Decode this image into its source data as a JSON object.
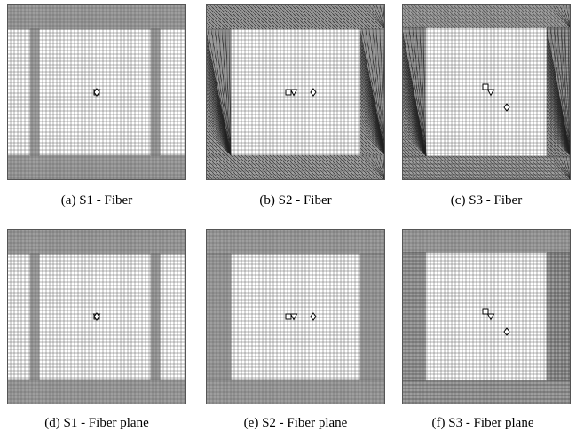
{
  "figure": {
    "panels": [
      {
        "id": "a",
        "caption": "(a)  S1 - Fiber",
        "scenario": "S1",
        "pattern": "bands-v",
        "markers": [
          "triangle-down",
          "square",
          "diamond"
        ],
        "marker_spread": "overlap"
      },
      {
        "id": "b",
        "caption": "(b)  S2 - Fiber",
        "scenario": "S2",
        "pattern": "frame-diag",
        "markers": [
          "square",
          "triangle-down",
          "diamond"
        ],
        "marker_spread": "row"
      },
      {
        "id": "c",
        "caption": "(c)  S3 - Fiber",
        "scenario": "S3",
        "pattern": "frame-diag",
        "markers": [
          "square",
          "triangle-down",
          "diamond"
        ],
        "marker_spread": "diagonal"
      },
      {
        "id": "d",
        "caption": "(d)  S1 - Fiber plane",
        "scenario": "S1",
        "pattern": "bands-v",
        "markers": [
          "triangle-down",
          "square",
          "diamond"
        ],
        "marker_spread": "overlap"
      },
      {
        "id": "e",
        "caption": "(e)  S2 - Fiber plane",
        "scenario": "S2",
        "pattern": "frame",
        "markers": [
          "square",
          "triangle-down",
          "diamond"
        ],
        "marker_spread": "row"
      },
      {
        "id": "f",
        "caption": "(f)  S3 - Fiber plane",
        "scenario": "S3",
        "pattern": "frame",
        "markers": [
          "square",
          "triangle-down",
          "diamond"
        ],
        "marker_spread": "diagonal"
      }
    ],
    "colors": {
      "grid_line": "#555555",
      "dense_grid": "#222222",
      "background": "#ffffff",
      "marker": "#000000"
    }
  }
}
